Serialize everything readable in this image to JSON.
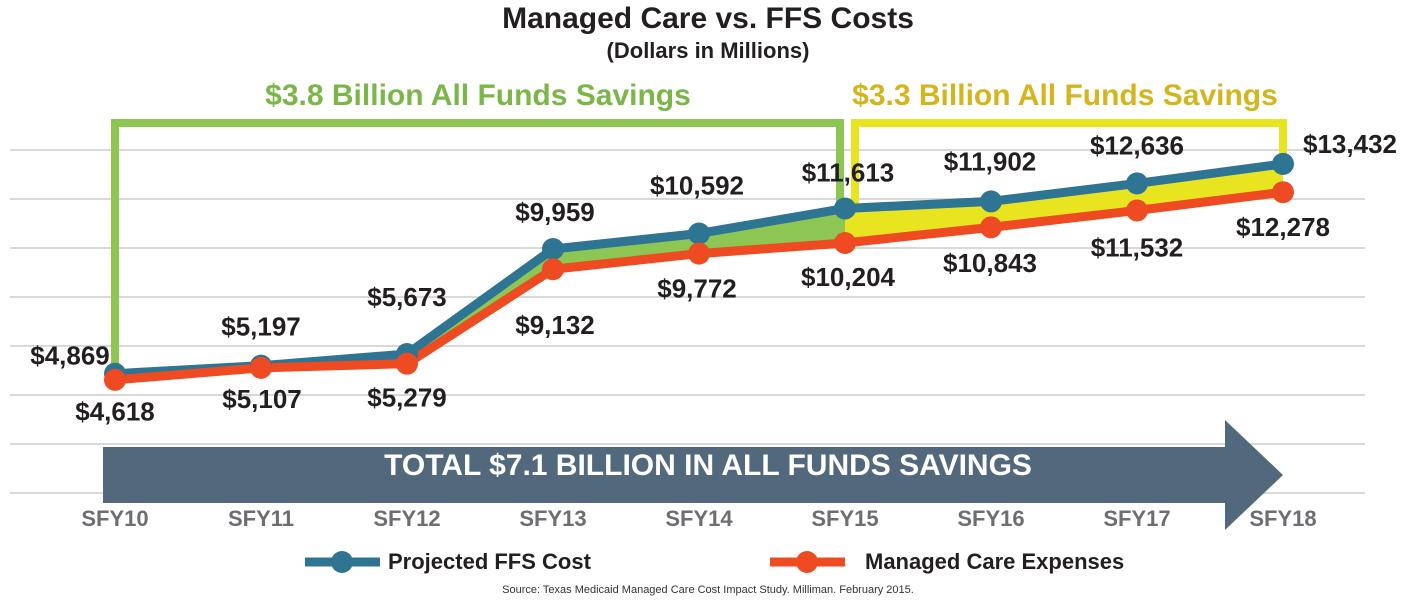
{
  "chart_data": {
    "type": "line",
    "title": "Managed Care vs. FFS Costs",
    "subtitle": "(Dollars in Millions)",
    "categories": [
      "SFY10",
      "SFY11",
      "SFY12",
      "SFY13",
      "SFY14",
      "SFY15",
      "SFY16",
      "SFY17",
      "SFY18"
    ],
    "series": [
      {
        "name": "Projected FFS Cost",
        "color": "#2e7493",
        "values": [
          4869,
          5197,
          5673,
          9959,
          10592,
          11613,
          11902,
          12636,
          13432
        ],
        "value_labels": [
          "$4,869",
          "$5,197",
          "$5,673",
          "$9,959",
          "$10,592",
          "$11,613",
          "$11,902",
          "$12,636",
          "$13,432"
        ]
      },
      {
        "name": "Managed Care Expenses",
        "color": "#ee4b22",
        "values": [
          4618,
          5107,
          5279,
          9132,
          9772,
          10204,
          10843,
          11532,
          12278
        ],
        "value_labels": [
          "$4,618",
          "$5,107",
          "$5,279",
          "$9,132",
          "$9,772",
          "$10,204",
          "$10,843",
          "$11,532",
          "$12,278"
        ]
      }
    ],
    "ylim": [
      0,
      14000
    ],
    "yticks": [
      0,
      2000,
      4000,
      6000,
      8000,
      10000,
      12000,
      14000
    ],
    "grid": true,
    "annotations": [
      "$3.8 Billion All Funds Savings",
      "$3.3 Billion All Funds Savings",
      "TOTAL $7.1 BILLION IN ALL FUNDS SAVINGS"
    ],
    "source": "Source: Texas Medicaid Managed Care Cost Impact Study. Milliman. February 2015."
  }
}
